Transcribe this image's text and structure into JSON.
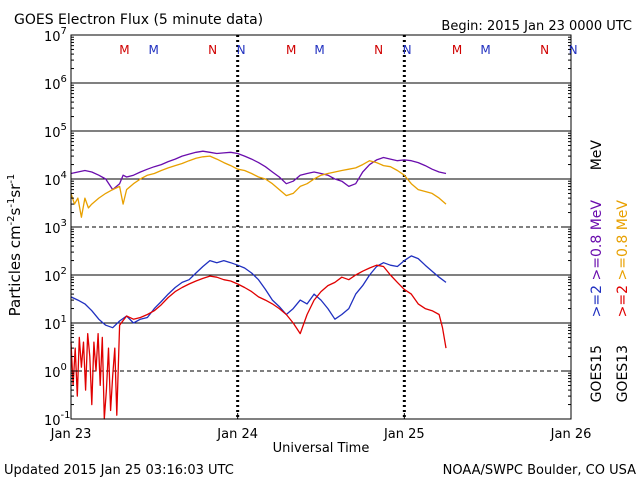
{
  "chart_data": {
    "type": "line",
    "title": "GOES Electron Flux (5 minute data)",
    "begin": "Begin: 2015 Jan 23 0000 UTC",
    "updated": "Updated 2015 Jan 25 03:16:03 UTC",
    "credit": "NOAA/SWPC Boulder, CO USA",
    "xlabel": "Universal Time",
    "ylabel": "Particles cm^-2 s^-1 sr^-1",
    "x_range_hours": [
      0,
      72
    ],
    "y_range_log10": [
      -1,
      7
    ],
    "x_ticks": [
      {
        "hour": 0,
        "label": "Jan 23"
      },
      {
        "hour": 24,
        "label": "Jan 24"
      },
      {
        "hour": 48,
        "label": "Jan 25"
      },
      {
        "hour": 72,
        "label": "Jan 26"
      }
    ],
    "y_ticks": [
      {
        "exp": 7,
        "label": "10"
      },
      {
        "exp": 6,
        "label": "10"
      },
      {
        "exp": 5,
        "label": "10"
      },
      {
        "exp": 4,
        "label": "10"
      },
      {
        "exp": 3,
        "label": "10"
      },
      {
        "exp": 2,
        "label": "10"
      },
      {
        "exp": 1,
        "label": "10"
      },
      {
        "exp": 0,
        "label": "10"
      },
      {
        "exp": -1,
        "label": "10"
      }
    ],
    "y_tick_exponents": [
      "7",
      "6",
      "5",
      "4",
      "3",
      "2",
      "1",
      "0",
      "-1"
    ],
    "solid_gridlines": [
      1,
      2,
      4,
      5,
      6
    ],
    "dashed_gridlines": [
      0,
      3
    ],
    "markers": [
      {
        "hour": 7.7,
        "label": "M",
        "color": "#d00000"
      },
      {
        "hour": 11.9,
        "label": "M",
        "color": "#2030c0"
      },
      {
        "hour": 20.4,
        "label": "N",
        "color": "#d00000"
      },
      {
        "hour": 24.5,
        "label": "N",
        "color": "#2030c0"
      },
      {
        "hour": 31.7,
        "label": "M",
        "color": "#d00000"
      },
      {
        "hour": 35.8,
        "label": "M",
        "color": "#2030c0"
      },
      {
        "hour": 44.3,
        "label": "N",
        "color": "#d00000"
      },
      {
        "hour": 48.4,
        "label": "N",
        "color": "#2030c0"
      },
      {
        "hour": 55.6,
        "label": "M",
        "color": "#d00000"
      },
      {
        "hour": 59.7,
        "label": "M",
        "color": "#2030c0"
      },
      {
        "hour": 68.2,
        "label": "N",
        "color": "#d00000"
      },
      {
        "hour": 72.3,
        "label": "N",
        "color": "#2030c0"
      }
    ],
    "legend": [
      {
        "label": ">=0.8 MeV",
        "satellite_label": "GOES15",
        "color": "#6a0dad"
      },
      {
        "label": ">=0.8 MeV",
        "satellite_label": "GOES13",
        "color": "#e8a000"
      },
      {
        "label": ">=2 MeV",
        "satellite_label": "GOES15",
        "color": "#2030c0"
      },
      {
        "label": ">=2 MeV",
        "satellite_label": "GOES13",
        "color": "#e00000"
      }
    ],
    "legend_text": {
      "purple": ">=0.8  MeV",
      "orange": ">=0.8  MeV",
      "blue": ">=2",
      "red": ">=2",
      "mev": "MeV",
      "goes15": "GOES15",
      "goes13": "GOES13"
    },
    "series": [
      {
        "name": "GOES15 >=0.8 MeV",
        "color": "#6a0dad",
        "x": [
          0,
          1,
          2,
          3,
          4,
          5,
          6,
          7,
          7.5,
          8,
          9,
          10,
          11,
          12,
          13,
          14,
          15,
          16,
          17,
          18,
          19,
          20,
          21,
          22,
          23,
          24,
          25,
          26,
          27,
          28,
          29,
          30,
          31,
          32,
          33,
          34,
          35,
          36,
          37,
          38,
          39,
          40,
          41,
          42,
          43,
          44,
          45,
          46,
          47,
          48,
          49,
          50,
          51,
          52,
          53,
          54
        ],
        "y": [
          13000.0,
          14000.0,
          15000.0,
          14000.0,
          12000.0,
          10000.0,
          6000.0,
          8000.0,
          12000.0,
          11000.0,
          12000.0,
          14000.0,
          16000.0,
          18000.0,
          20000.0,
          23000.0,
          26000.0,
          30000.0,
          33000.0,
          36000.0,
          38000.0,
          36000.0,
          34000.0,
          35000.0,
          36000.0,
          34000.0,
          30000.0,
          26000.0,
          22000.0,
          18000.0,
          14000.0,
          11000.0,
          8000.0,
          9000.0,
          12000.0,
          13000.0,
          14000.0,
          13000.0,
          12000.0,
          10000.0,
          9000.0,
          7000.0,
          8000.0,
          14000.0,
          20000.0,
          25000.0,
          28000.0,
          26000.0,
          24000.0,
          25000.0,
          24000.0,
          22000.0,
          19000.0,
          16000.0,
          14000.0,
          13000.0
        ]
      },
      {
        "name": "GOES13 >=0.8 MeV",
        "color": "#e8a000",
        "x": [
          0,
          0.5,
          1,
          1.5,
          2,
          2.5,
          3,
          4,
          5,
          6,
          7,
          7.5,
          8,
          9,
          10,
          11,
          12,
          13,
          14,
          15,
          16,
          17,
          18,
          19,
          20,
          21,
          22,
          23,
          24,
          25,
          26,
          27,
          28,
          29,
          30,
          31,
          32,
          33,
          34,
          35,
          36,
          37,
          38,
          39,
          40,
          41,
          42,
          43,
          44,
          45,
          46,
          47,
          48,
          49,
          50,
          51,
          52,
          53,
          54
        ],
        "y": [
          5000.0,
          3000.0,
          4000.0,
          1600.0,
          4000.0,
          2500.0,
          3000.0,
          4000.0,
          5000.0,
          6000.0,
          7000.0,
          3000.0,
          6000.0,
          8000.0,
          10000.0,
          12000.0,
          13000.0,
          15000.0,
          17000.0,
          19000.0,
          21000.0,
          24000.0,
          27000.0,
          29000.0,
          30000.0,
          26000.0,
          22000.0,
          19000.0,
          16000.0,
          15000.0,
          13000.0,
          11000.0,
          10000.0,
          8000.0,
          6000.0,
          4500.0,
          5000.0,
          7000.0,
          8000.0,
          10000.0,
          12000.0,
          13000.0,
          14000.0,
          15000.0,
          16000.0,
          17000.0,
          20000.0,
          24000.0,
          22000.0,
          19000.0,
          18000.0,
          15000.0,
          12000.0,
          8000.0,
          6000.0,
          5500.0,
          5000.0,
          4000.0,
          3000.0
        ]
      },
      {
        "name": "GOES15 >=2 MeV",
        "color": "#2030c0",
        "x": [
          0,
          1,
          2,
          3,
          4,
          5,
          6,
          7,
          8,
          9,
          10,
          11,
          12,
          13,
          14,
          15,
          16,
          17,
          18,
          19,
          20,
          21,
          22,
          23,
          24,
          25,
          26,
          27,
          28,
          29,
          30,
          31,
          32,
          33,
          34,
          35,
          36,
          37,
          38,
          39,
          40,
          41,
          42,
          43,
          44,
          45,
          46,
          47,
          48,
          49,
          50,
          51,
          52,
          53,
          54
        ],
        "y": [
          35,
          30,
          25,
          18,
          12,
          9,
          8,
          11,
          14,
          10,
          12,
          13,
          20,
          28,
          40,
          55,
          70,
          80,
          110,
          150,
          200,
          180,
          200,
          180,
          160,
          140,
          110,
          80,
          50,
          30,
          22,
          15,
          20,
          30,
          25,
          40,
          30,
          20,
          12,
          15,
          20,
          40,
          60,
          100,
          150,
          180,
          160,
          150,
          200,
          250,
          220,
          160,
          120,
          90,
          70
        ]
      },
      {
        "name": "GOES13 >=2 MeV",
        "color": "#e00000",
        "x": [
          0,
          0.3,
          0.6,
          0.9,
          1.2,
          1.5,
          1.8,
          2.1,
          2.4,
          2.7,
          3.0,
          3.3,
          3.6,
          3.9,
          4.2,
          4.5,
          4.8,
          5.1,
          5.4,
          5.7,
          6.0,
          6.3,
          6.6,
          7,
          8,
          9,
          10,
          11,
          12,
          13,
          14,
          15,
          16,
          17,
          18,
          19,
          20,
          21,
          22,
          23,
          24,
          25,
          26,
          27,
          28,
          29,
          30,
          31,
          32,
          33,
          34,
          35,
          36,
          37,
          38,
          39,
          40,
          41,
          42,
          43,
          44,
          45,
          46,
          47,
          48,
          49,
          50,
          51,
          52,
          53,
          53.5,
          54
        ],
        "y": [
          4,
          0.5,
          3,
          0.3,
          5,
          1.2,
          4,
          0.4,
          6,
          2,
          0.2,
          4,
          1,
          6,
          0.5,
          5,
          0.1,
          0.4,
          3,
          0.15,
          0.8,
          3,
          0.12,
          9,
          14,
          12,
          13,
          15,
          18,
          24,
          34,
          45,
          55,
          65,
          75,
          85,
          95,
          90,
          80,
          75,
          65,
          55,
          45,
          35,
          30,
          25,
          20,
          15,
          10,
          6,
          15,
          30,
          45,
          60,
          70,
          90,
          80,
          100,
          120,
          140,
          160,
          150,
          100,
          70,
          50,
          40,
          25,
          20,
          18,
          15,
          8,
          3
        ]
      }
    ]
  }
}
